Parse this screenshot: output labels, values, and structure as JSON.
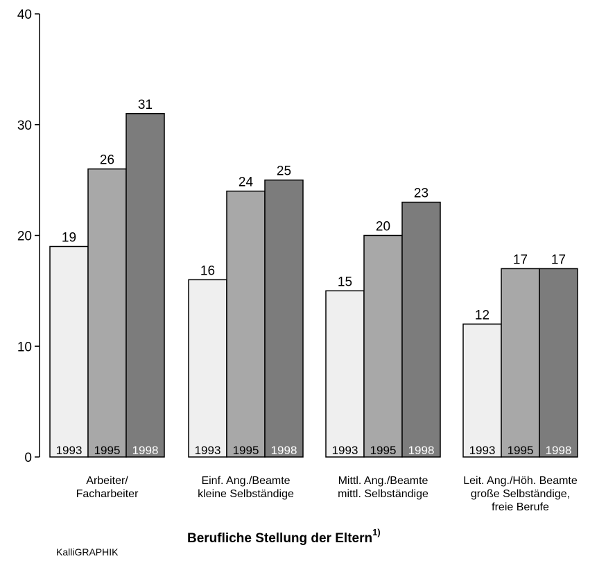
{
  "chart_data": {
    "type": "bar",
    "title": "",
    "xlabel": "Berufliche Stellung der Eltern",
    "xlabel_footnote": "1)",
    "ylabel": "",
    "ylim": [
      0,
      40
    ],
    "yticks": [
      0,
      10,
      20,
      30,
      40
    ],
    "categories": [
      [
        "Arbeiter/",
        "Facharbeiter"
      ],
      [
        "Einf. Ang./Beamte",
        "kleine Selbständige"
      ],
      [
        "Mittl. Ang./Beamte",
        "mittl. Selbständige"
      ],
      [
        "Leit. Ang./Höh. Beamte",
        "große Selbständige,",
        "freie Berufe"
      ]
    ],
    "series": [
      {
        "name": "1993",
        "color": "#efefef",
        "text_color": "#000000",
        "values": [
          19,
          16,
          15,
          12
        ]
      },
      {
        "name": "1995",
        "color": "#a8a8a8",
        "text_color": "#000000",
        "values": [
          26,
          24,
          20,
          17
        ]
      },
      {
        "name": "1998",
        "color": "#7c7c7c",
        "text_color": "#ffffff",
        "values": [
          31,
          25,
          23,
          17
        ]
      }
    ],
    "grid": false,
    "legend": "year labels inside bar bottoms"
  },
  "credit": "KalliGRAPHIK"
}
